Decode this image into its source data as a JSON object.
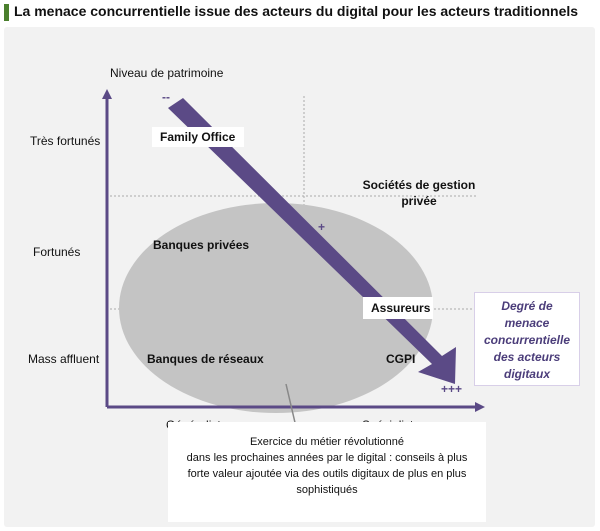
{
  "title": "La menace concurrentielle issue des acteurs du digital pour les acteurs traditionnels",
  "axes": {
    "y_label": "Niveau de patrimoine",
    "x_left": "Généralistes",
    "x_right": "Spécialistes"
  },
  "levels": {
    "tres_fortunes": "Très fortunés",
    "fortunes": "Fortunés",
    "mass_affluent": "Mass affluent"
  },
  "actors": {
    "family_office": "Family Office",
    "societes_line1": "Sociétés de gestion",
    "societes_line2": "privée",
    "banques_privees": "Banques privées",
    "assureurs": "Assureurs",
    "banques_reseaux": "Banques de réseaux",
    "cgpi": "CGPI"
  },
  "scale": {
    "minus": "--",
    "plus": "+",
    "plus3": "+++"
  },
  "threat_box": {
    "line1": "Degré de",
    "line2": "menace",
    "line3": "concurrentielle",
    "line4": "des acteurs",
    "line5": "digitaux"
  },
  "note": {
    "line1": "Exercice du métier révolutionné",
    "line2": "dans les prochaines années par le digital : conseils à plus",
    "line3": "forte valeur ajoutée via des outils digitaux de plus en plus",
    "line4": "sophistiqués"
  },
  "colors": {
    "arrow": "#5b4a86",
    "ellipse": "#c4c4c4",
    "axis": "#5b4a86",
    "threat_text": "#4b3d7a"
  }
}
